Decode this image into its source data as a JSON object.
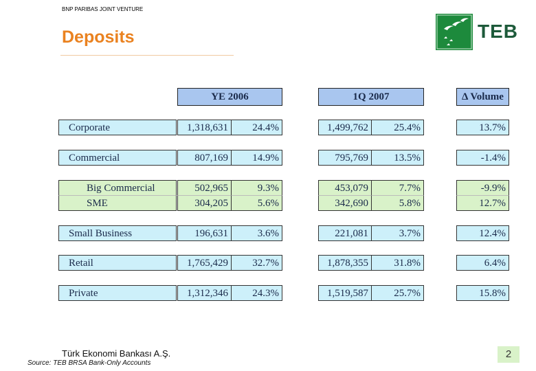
{
  "header": {
    "tagline": "BNP PARIBAS JOINT VENTURE",
    "title": "Deposits",
    "logo": "TEB"
  },
  "table": {
    "headers": [
      "YE 2006",
      "1Q 2007",
      "Δ Volume"
    ],
    "rows": [
      [
        "Corporate",
        "1,318,631",
        "24.4%",
        "1,499,762",
        "25.4%",
        "13.7%"
      ],
      [
        "Commercial",
        "807,169",
        "14.9%",
        "795,769",
        "13.5%",
        "-1.4%"
      ],
      [
        "Big Commercial",
        "502,965",
        "9.3%",
        "453,079",
        "7.7%",
        "-9.9%"
      ],
      [
        "SME",
        "304,205",
        "5.6%",
        "342,690",
        "5.8%",
        "12.7%"
      ],
      [
        "Small Business",
        "196,631",
        "3.6%",
        "221,081",
        "3.7%",
        "12.4%"
      ],
      [
        "Retail",
        "1,765,429",
        "32.7%",
        "1,878,355",
        "31.8%",
        "6.4%"
      ],
      [
        "Private",
        "1,312,346",
        "24.3%",
        "1,519,587",
        "25.7%",
        "15.8%"
      ]
    ]
  },
  "footer": {
    "company": "Türk Ekonomi Bankası A.Ş.",
    "source": "Source: TEB BRSA Bank-Only Accounts",
    "page": "2"
  }
}
